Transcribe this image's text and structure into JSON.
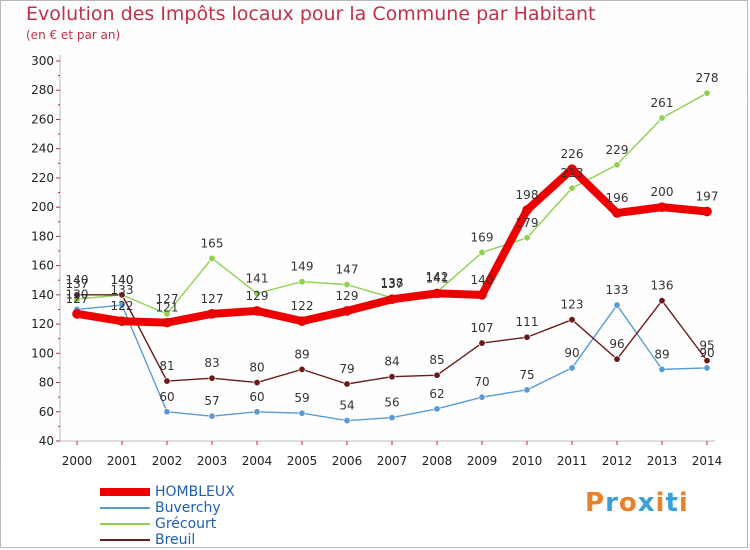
{
  "header": {
    "title": "Evolution des Impôts locaux pour la Commune par Habitant",
    "subtitle": "(en € et par an)"
  },
  "logo": {
    "text": "Proxiti",
    "colors": [
      "#e8812b",
      "#3aa0d8",
      "#e8812b",
      "#3aa0d8",
      "#e8812b",
      "#3aa0d8",
      "#e8812b"
    ]
  },
  "chart_data": {
    "type": "line",
    "title": "Evolution des Impôts locaux pour la Commune par Habitant",
    "subtitle": "(en € et par an)",
    "x": [
      "2000",
      "2001",
      "2002",
      "2003",
      "2004",
      "2005",
      "2006",
      "2007",
      "2008",
      "2009",
      "2010",
      "2011",
      "2012",
      "2013",
      "2014"
    ],
    "ylim": [
      40,
      300
    ],
    "yticks": [
      40,
      60,
      80,
      100,
      120,
      140,
      160,
      180,
      200,
      220,
      240,
      260,
      280,
      300
    ],
    "grid": false,
    "legend_position": "bottom-left",
    "series": [
      {
        "name": "HOMBLEUX",
        "color": "#ee0000",
        "values": [
          127,
          122,
          121,
          127,
          129,
          122,
          129,
          137,
          141,
          140,
          198,
          226,
          196,
          200,
          197
        ]
      },
      {
        "name": "Buverchy",
        "color": "#5a9bd4",
        "values": [
          130,
          133,
          60,
          57,
          60,
          59,
          54,
          56,
          62,
          70,
          75,
          90,
          133,
          89,
          90
        ]
      },
      {
        "name": "Grécourt",
        "color": "#8fd14f",
        "values": [
          137,
          140,
          127,
          165,
          141,
          149,
          147,
          138,
          142,
          169,
          179,
          213,
          229,
          261,
          278
        ]
      },
      {
        "name": "Breuil",
        "color": "#6b1a1a",
        "values": [
          140,
          140,
          81,
          83,
          80,
          89,
          79,
          84,
          85,
          107,
          111,
          123,
          96,
          136,
          95
        ]
      }
    ]
  }
}
